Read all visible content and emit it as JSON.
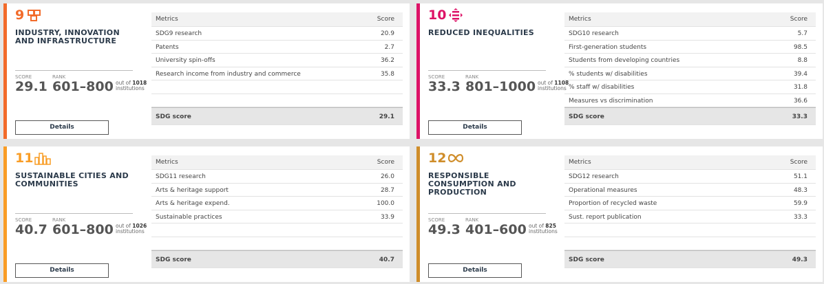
{
  "cards": [
    {
      "number": "9",
      "title": "INDUSTRY, INNOVATION AND INFRASTRUCTURE",
      "color": "#f26b2a",
      "score_label": "SCORE",
      "score": "29.1",
      "rank_label": "RANK",
      "rank": "601–800",
      "out_of": "out of",
      "total": "1018",
      "institutions": "institutions",
      "table": {
        "header": [
          "Metrics",
          "Score"
        ],
        "rows": [
          [
            "SDG9 research",
            "20.9"
          ],
          [
            "Patents",
            "2.7"
          ],
          [
            "University spin-offs",
            "36.2"
          ],
          [
            "Research income from industry and commerce",
            "35.8"
          ]
        ],
        "footer": [
          "SDG score",
          "29.1"
        ]
      },
      "button": "Details"
    },
    {
      "number": "10",
      "title": "REDUCED INEQUALITIES",
      "color": "#dd1367",
      "score_label": "SCORE",
      "score": "33.3",
      "rank_label": "RANK",
      "rank": "801–1000",
      "out_of": "out of",
      "total": "1108",
      "institutions": "institutions",
      "table": {
        "header": [
          "Metrics",
          "Score"
        ],
        "rows": [
          [
            "SDG10 research",
            "5.7"
          ],
          [
            "First-generation students",
            "98.5"
          ],
          [
            "Students from developing countries",
            "8.8"
          ],
          [
            "% students w/ disabilities",
            "39.4"
          ],
          [
            "% staff w/ disabilities",
            "31.8"
          ],
          [
            "Measures vs discrimination",
            "36.6"
          ]
        ],
        "footer": [
          "SDG score",
          "33.3"
        ]
      },
      "button": "Details"
    },
    {
      "number": "11",
      "title": "SUSTAINABLE CITIES AND COMMUNITIES",
      "color": "#f99d26",
      "score_label": "SCORE",
      "score": "40.7",
      "rank_label": "RANK",
      "rank": "601–800",
      "out_of": "out of",
      "total": "1026",
      "institutions": "institutions",
      "table": {
        "header": [
          "Metrics",
          "Score"
        ],
        "rows": [
          [
            "SDG11 research",
            "26.0"
          ],
          [
            "Arts & heritage support",
            "28.7"
          ],
          [
            "Arts & heritage expend.",
            "100.0"
          ],
          [
            "Sustainable practices",
            "33.9"
          ]
        ],
        "footer": [
          "SDG score",
          "40.7"
        ]
      },
      "button": "Details"
    },
    {
      "number": "12",
      "title": "RESPONSIBLE CONSUMPTION AND PRODUCTION",
      "color": "#cf8d2a",
      "score_label": "SCORE",
      "score": "49.3",
      "rank_label": "RANK",
      "rank": "401–600",
      "out_of": "out of",
      "total": "825",
      "institutions": "institutions",
      "table": {
        "header": [
          "Metrics",
          "Score"
        ],
        "rows": [
          [
            "SDG12 research",
            "51.1"
          ],
          [
            "Operational measures",
            "48.3"
          ],
          [
            "Proportion of recycled waste",
            "59.9"
          ],
          [
            "Sust. report publication",
            "33.3"
          ]
        ],
        "footer": [
          "SDG score",
          "49.3"
        ]
      },
      "button": "Details"
    }
  ]
}
